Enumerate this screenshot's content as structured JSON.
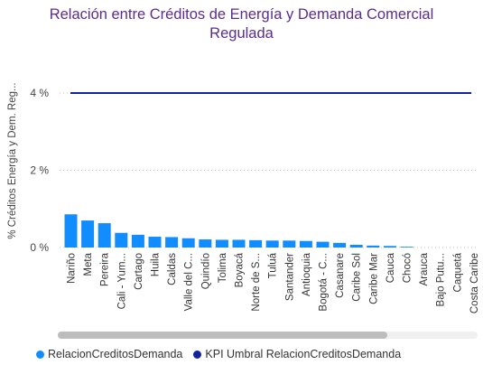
{
  "chart_data": {
    "type": "bar",
    "title_lines": [
      "Relación entre Créditos de Energía y Demanda Comercial",
      "Regulada"
    ],
    "ylabel": "% Créditos Energía y Dem. Reg...",
    "ylim": [
      0,
      4.6
    ],
    "yticks": [
      0,
      2,
      4
    ],
    "ytick_labels": [
      "0 %",
      "2 %",
      "4 %"
    ],
    "categories": [
      "Nariño",
      "Meta",
      "Pereira",
      "Cali - Yum...",
      "Cartago",
      "Huila",
      "Caldas",
      "Valle del C...",
      "Quindío",
      "Tolima",
      "Boyacá",
      "Norte de S...",
      "Tuluá",
      "Santander",
      "Antioquia",
      "Bogotá - C...",
      "Casanare",
      "Caribe Sol",
      "Caribe Mar",
      "Cauca",
      "Chocó",
      "Arauca",
      "Bajo Putu...",
      "Caquetá",
      "Costa Caribe"
    ],
    "series": [
      {
        "name": "RelacionCreditosDemanda",
        "color": "#118dff",
        "values": [
          0.86,
          0.7,
          0.63,
          0.38,
          0.33,
          0.28,
          0.27,
          0.24,
          0.21,
          0.2,
          0.2,
          0.19,
          0.18,
          0.18,
          0.17,
          0.15,
          0.12,
          0.07,
          0.05,
          0.04,
          0.02,
          0,
          0,
          0,
          0
        ]
      },
      {
        "name": "KPI Umbral RelacionCreditosDemanda",
        "color": "#12239e",
        "type": "line",
        "constant": 4
      }
    ],
    "legend_position": "bottom-left",
    "grid": true
  }
}
